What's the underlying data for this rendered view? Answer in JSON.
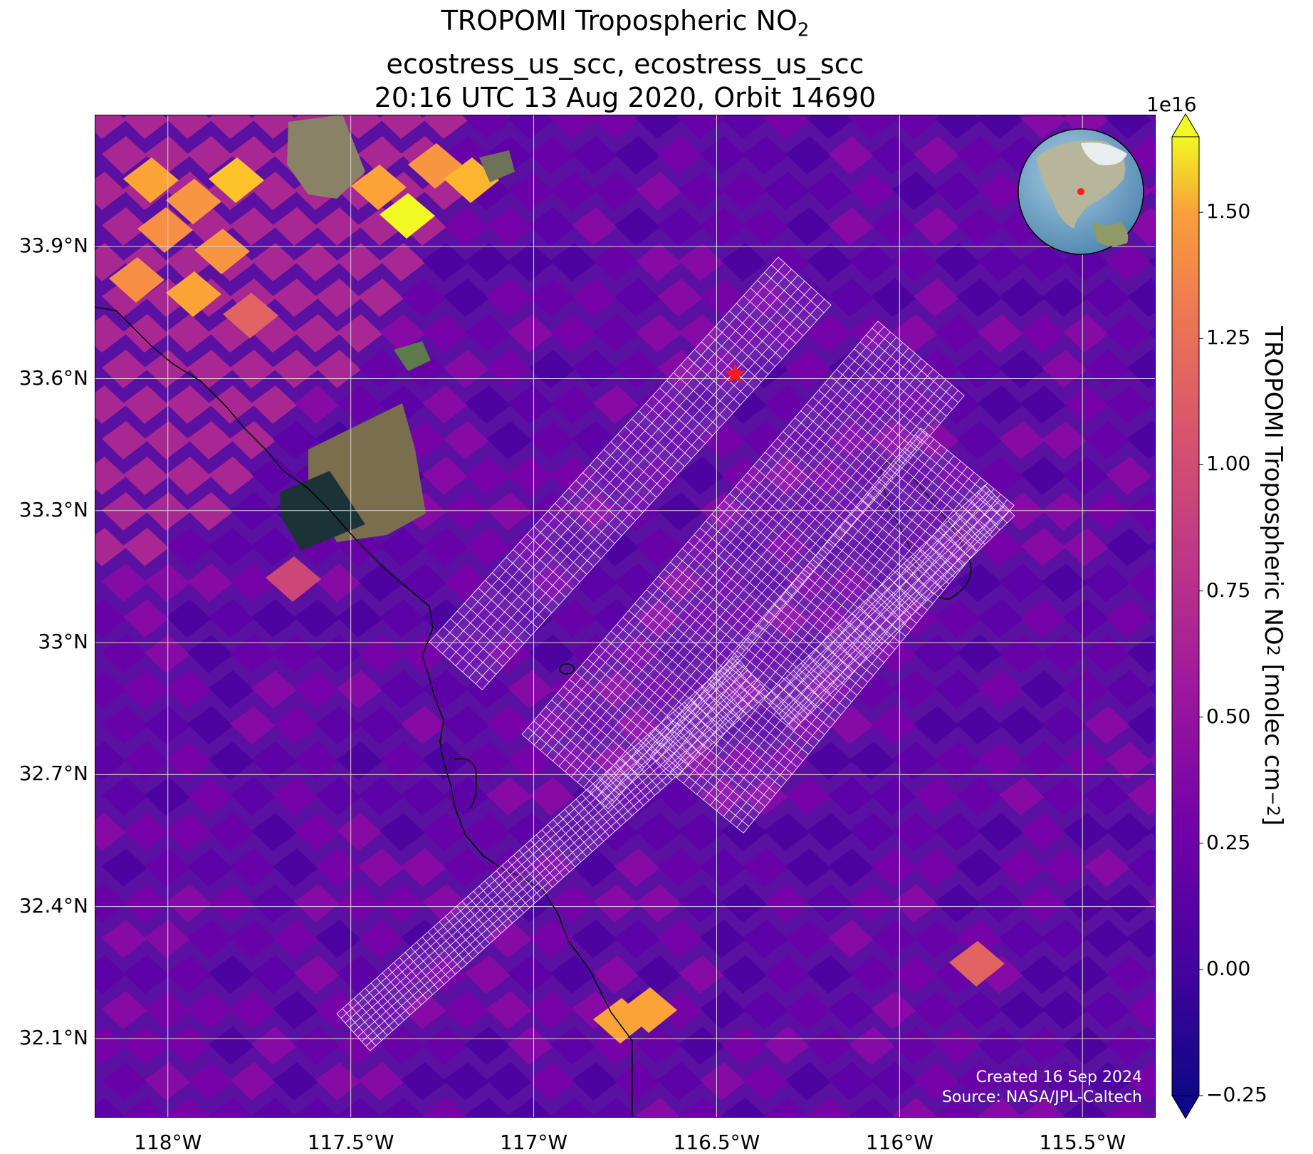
{
  "title": {
    "line1_main": "TROPOMI Tropospheric NO",
    "line1_sub": "2",
    "line2": "ecostress_us_scc, ecostress_us_scc",
    "line3": "20:16 UTC 13 Aug 2020, Orbit 14690"
  },
  "map": {
    "lon_range": [
      -118.2,
      -115.3
    ],
    "lat_range": [
      31.92,
      34.2
    ],
    "lat_ticks": [
      {
        "value": 33.9,
        "label": "33.9°N"
      },
      {
        "value": 33.6,
        "label": "33.6°N"
      },
      {
        "value": 33.3,
        "label": "33.3°N"
      },
      {
        "value": 33.0,
        "label": "33°N"
      },
      {
        "value": 32.7,
        "label": "32.7°N"
      },
      {
        "value": 32.4,
        "label": "32.4°N"
      },
      {
        "value": 32.1,
        "label": "32.1°N"
      }
    ],
    "lon_ticks": [
      {
        "value": -118.0,
        "label": "118°W"
      },
      {
        "value": -117.5,
        "label": "117.5°W"
      },
      {
        "value": -117.0,
        "label": "117°W"
      },
      {
        "value": -116.5,
        "label": "116.5°W"
      },
      {
        "value": -116.0,
        "label": "116°W"
      },
      {
        "value": -115.5,
        "label": "115.5°W"
      }
    ],
    "site_marker": {
      "lon": -116.45,
      "lat": 33.61,
      "color": "#ff1a1a"
    },
    "inset": "globe-north-america",
    "colormap": "plasma",
    "grid": true
  },
  "colorbar": {
    "label_main": "TROPOMI Tropospheric NO",
    "label_sub": "2",
    "label_units": " [molec cm",
    "label_exp": "−2",
    "label_close": "]",
    "exponent": "1e16",
    "range": [
      -0.25,
      1.65
    ],
    "extend": "both",
    "ticks": [
      {
        "value": 1.5,
        "label": "1.50"
      },
      {
        "value": 1.25,
        "label": "1.25"
      },
      {
        "value": 1.0,
        "label": "1.00"
      },
      {
        "value": 0.75,
        "label": "0.75"
      },
      {
        "value": 0.5,
        "label": "0.50"
      },
      {
        "value": 0.25,
        "label": "0.25"
      },
      {
        "value": 0.0,
        "label": "0.00"
      },
      {
        "value": -0.25,
        "label": "−0.25"
      }
    ]
  },
  "credits": {
    "created": "Created 16 Sep 2024",
    "source": "Source: NASA/JPL-Caltech"
  }
}
